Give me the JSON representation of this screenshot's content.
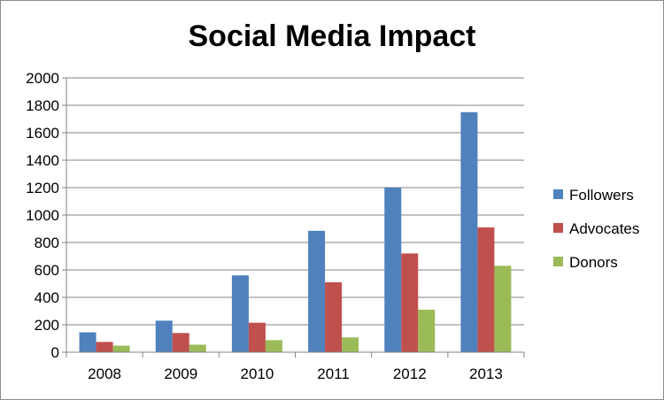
{
  "chart_data": {
    "type": "bar",
    "title": "Social Media Impact",
    "xlabel": "",
    "ylabel": "",
    "categories": [
      "2008",
      "2009",
      "2010",
      "2011",
      "2012",
      "2013"
    ],
    "series": [
      {
        "name": "Followers",
        "color": "#4F81BD",
        "values": [
          145,
          230,
          560,
          885,
          1200,
          1750
        ]
      },
      {
        "name": "Advocates",
        "color": "#C0504D",
        "values": [
          75,
          140,
          215,
          510,
          720,
          910
        ]
      },
      {
        "name": "Donors",
        "color": "#9BBB59",
        "values": [
          48,
          55,
          88,
          108,
          310,
          630
        ]
      }
    ],
    "ylim": [
      0,
      2000
    ],
    "yticks": [
      0,
      200,
      400,
      600,
      800,
      1000,
      1200,
      1400,
      1600,
      1800,
      2000
    ],
    "ytick_labels": [
      "0",
      "200",
      "400",
      "600",
      "800",
      "1000",
      "1200",
      "1400",
      "1600",
      "1800",
      "2000"
    ],
    "grid": true,
    "legend_position": "right"
  }
}
